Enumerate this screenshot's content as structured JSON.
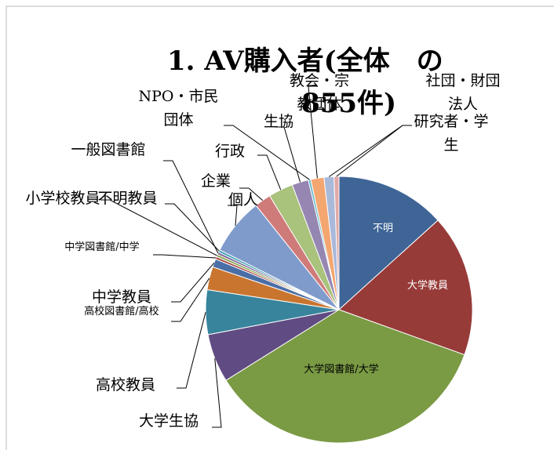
{
  "chart_data": {
    "type": "pie",
    "title": [
      "1. AV購入者(全体　の",
      "855件)"
    ],
    "categories": [
      "不明",
      "大学教員",
      "大学図書館/大学",
      "大学生協",
      "高校教員",
      "高校図書館/高校",
      "中学教員",
      "中学図書館/中学",
      "小学校教員",
      "一般図書館",
      "不明教員",
      "個人",
      "企業",
      "行政",
      "生協",
      "NPO・市民団体",
      "教会・宗教団体",
      "社団・財団法人",
      "研究者・学生"
    ],
    "values": [
      13.3,
      17.2,
      35.6,
      5.9,
      5.4,
      2.8,
      1.0,
      0.3,
      0.3,
      0.3,
      0.3,
      6.9,
      2.0,
      3.0,
      2.0,
      0.3,
      1.6,
      1.2,
      0.6
    ],
    "colors": [
      "#3f6597",
      "#973b39",
      "#7a9a44",
      "#604c83",
      "#38849c",
      "#c9752f",
      "#4a6ea6",
      "#a94744",
      "#8aa853",
      "#7a6699",
      "#46a1b8",
      "#7f9bcb",
      "#cf7b7a",
      "#a9c27c",
      "#9587b2",
      "#6ebccf",
      "#f4a671",
      "#a9b9da",
      "#e0a8a7"
    ]
  }
}
